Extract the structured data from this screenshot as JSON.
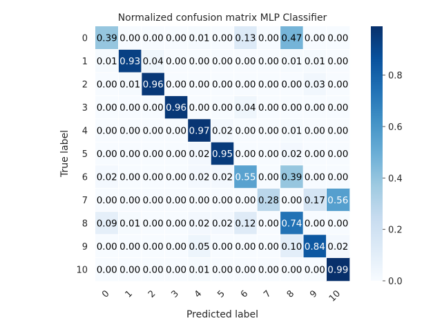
{
  "chart_data": {
    "type": "heatmap",
    "title": "Normalized confusion matrix MLP Classifier",
    "xlabel": "Predicted label",
    "ylabel": "True label",
    "x_categories": [
      "0",
      "1",
      "2",
      "3",
      "4",
      "5",
      "6",
      "7",
      "8",
      "9",
      "10"
    ],
    "y_categories": [
      "0",
      "1",
      "2",
      "3",
      "4",
      "5",
      "6",
      "7",
      "8",
      "9",
      "10"
    ],
    "values": [
      [
        0.39,
        0.0,
        0.0,
        0.0,
        0.01,
        0.0,
        0.13,
        0.0,
        0.47,
        0.0,
        0.0
      ],
      [
        0.01,
        0.93,
        0.04,
        0.0,
        0.0,
        0.0,
        0.0,
        0.0,
        0.01,
        0.01,
        0.0
      ],
      [
        0.0,
        0.01,
        0.96,
        0.0,
        0.0,
        0.0,
        0.0,
        0.0,
        0.0,
        0.03,
        0.0
      ],
      [
        0.0,
        0.0,
        0.0,
        0.96,
        0.0,
        0.0,
        0.04,
        0.0,
        0.0,
        0.0,
        0.0
      ],
      [
        0.0,
        0.0,
        0.0,
        0.0,
        0.97,
        0.02,
        0.0,
        0.0,
        0.01,
        0.0,
        0.0
      ],
      [
        0.0,
        0.0,
        0.0,
        0.0,
        0.02,
        0.95,
        0.0,
        0.0,
        0.02,
        0.0,
        0.0
      ],
      [
        0.02,
        0.0,
        0.0,
        0.0,
        0.02,
        0.02,
        0.55,
        0.0,
        0.39,
        0.0,
        0.0
      ],
      [
        0.0,
        0.0,
        0.0,
        0.0,
        0.0,
        0.0,
        0.0,
        0.28,
        0.0,
        0.17,
        0.56
      ],
      [
        0.09,
        0.01,
        0.0,
        0.0,
        0.02,
        0.02,
        0.12,
        0.0,
        0.74,
        0.0,
        0.0
      ],
      [
        0.0,
        0.0,
        0.0,
        0.0,
        0.05,
        0.0,
        0.0,
        0.0,
        0.1,
        0.84,
        0.02
      ],
      [
        0.0,
        0.0,
        0.0,
        0.0,
        0.01,
        0.0,
        0.0,
        0.0,
        0.0,
        0.0,
        0.99
      ]
    ],
    "value_format": "0.00",
    "colormap": "Blues",
    "colorbar": {
      "range": [
        0.0,
        0.99
      ],
      "ticks": [
        "0.0",
        "0.2",
        "0.4",
        "0.6",
        "0.8"
      ]
    },
    "grid": true,
    "grid_color": "#ffffff",
    "x_tick_rotation_deg": 45,
    "text_color_dark_cells": "#ffffff",
    "text_color_light_cells": "#000000"
  }
}
